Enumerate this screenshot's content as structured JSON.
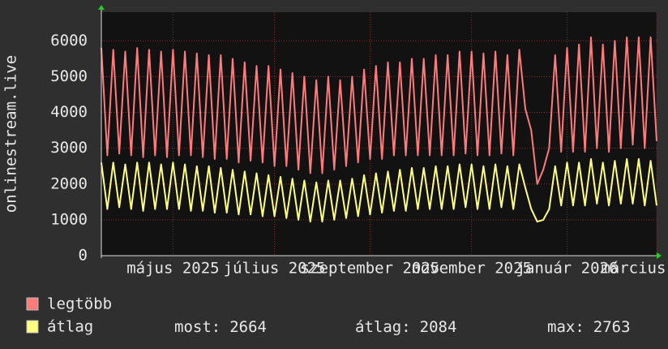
{
  "chart_data": {
    "type": "line",
    "y_label": "onlinestream.live",
    "categories": [
      null,
      null,
      null,
      null,
      null,
      null,
      null,
      null,
      null,
      null,
      null,
      null,
      "május 2025",
      null,
      null,
      null,
      null,
      null,
      null,
      null,
      null,
      null,
      null,
      null,
      null,
      null,
      null,
      null,
      null,
      "július 2025",
      null,
      null,
      null,
      null,
      null,
      null,
      null,
      null,
      null,
      null,
      null,
      null,
      null,
      null,
      null,
      "szeptember 2025",
      null,
      null,
      null,
      null,
      null,
      null,
      null,
      null,
      null,
      null,
      null,
      null,
      null,
      null,
      null,
      null,
      "november 2025",
      null,
      null,
      null,
      null,
      null,
      null,
      null,
      null,
      null,
      null,
      null,
      null,
      null,
      null,
      null,
      "január 2026",
      null,
      null,
      null,
      null,
      null,
      null,
      null,
      null,
      null,
      null,
      null,
      null,
      null,
      null,
      "március 2026"
    ],
    "series": [
      {
        "name": "legtöbb",
        "color": "#ff7a7a",
        "values": [
          5800,
          2800,
          5750,
          2850,
          5700,
          2800,
          5800,
          2750,
          5750,
          2800,
          5700,
          2750,
          5750,
          2800,
          5700,
          2800,
          5650,
          2750,
          5600,
          2700,
          5600,
          2700,
          5500,
          2600,
          5400,
          2650,
          5300,
          2600,
          5300,
          2500,
          5200,
          2500,
          5100,
          2400,
          5000,
          2300,
          4900,
          2300,
          5000,
          2400,
          4900,
          2500,
          5000,
          2600,
          5200,
          2700,
          5300,
          2700,
          5400,
          2800,
          5400,
          2800,
          5500,
          2800,
          5500,
          2800,
          5600,
          2800,
          5600,
          2800,
          5700,
          2850,
          5700,
          2800,
          5650,
          2800,
          5700,
          2850,
          5600,
          2800,
          5750,
          4100,
          3500,
          2000,
          2400,
          3000,
          5600,
          2900,
          5800,
          2900,
          5900,
          2900,
          6100,
          3000,
          5900,
          2900,
          6000,
          3000,
          6100,
          3100,
          6100,
          3000,
          6100,
          3200
        ]
      },
      {
        "name": "átlag",
        "color": "#ffff80",
        "values": [
          2600,
          1300,
          2600,
          1350,
          2550,
          1300,
          2600,
          1250,
          2600,
          1300,
          2550,
          1300,
          2600,
          1300,
          2550,
          1250,
          2500,
          1250,
          2500,
          1200,
          2450,
          1200,
          2400,
          1150,
          2350,
          1150,
          2300,
          1100,
          2250,
          1100,
          2200,
          1050,
          2150,
          1000,
          2100,
          950,
          2050,
          950,
          2100,
          1000,
          2100,
          1050,
          2150,
          1100,
          2250,
          1150,
          2300,
          1200,
          2350,
          1250,
          2400,
          1250,
          2450,
          1300,
          2450,
          1300,
          2500,
          1300,
          2500,
          1300,
          2550,
          1350,
          2550,
          1300,
          2500,
          1300,
          2550,
          1350,
          2500,
          1300,
          2550,
          1900,
          1300,
          950,
          1000,
          1300,
          2500,
          1400,
          2600,
          1400,
          2600,
          1400,
          2700,
          1450,
          2600,
          1400,
          2650,
          1450,
          2700,
          1450,
          2700,
          1400,
          2650,
          1400
        ]
      }
    ],
    "stats": [
      {
        "label": "most:",
        "value": 2664
      },
      {
        "label": "átlag:",
        "value": 2084
      },
      {
        "label": "max:",
        "value": 2763
      }
    ],
    "ylim": [
      0,
      6800
    ],
    "yticks": [
      0,
      1000,
      2000,
      3000,
      4000,
      5000,
      6000
    ],
    "grid": true
  }
}
